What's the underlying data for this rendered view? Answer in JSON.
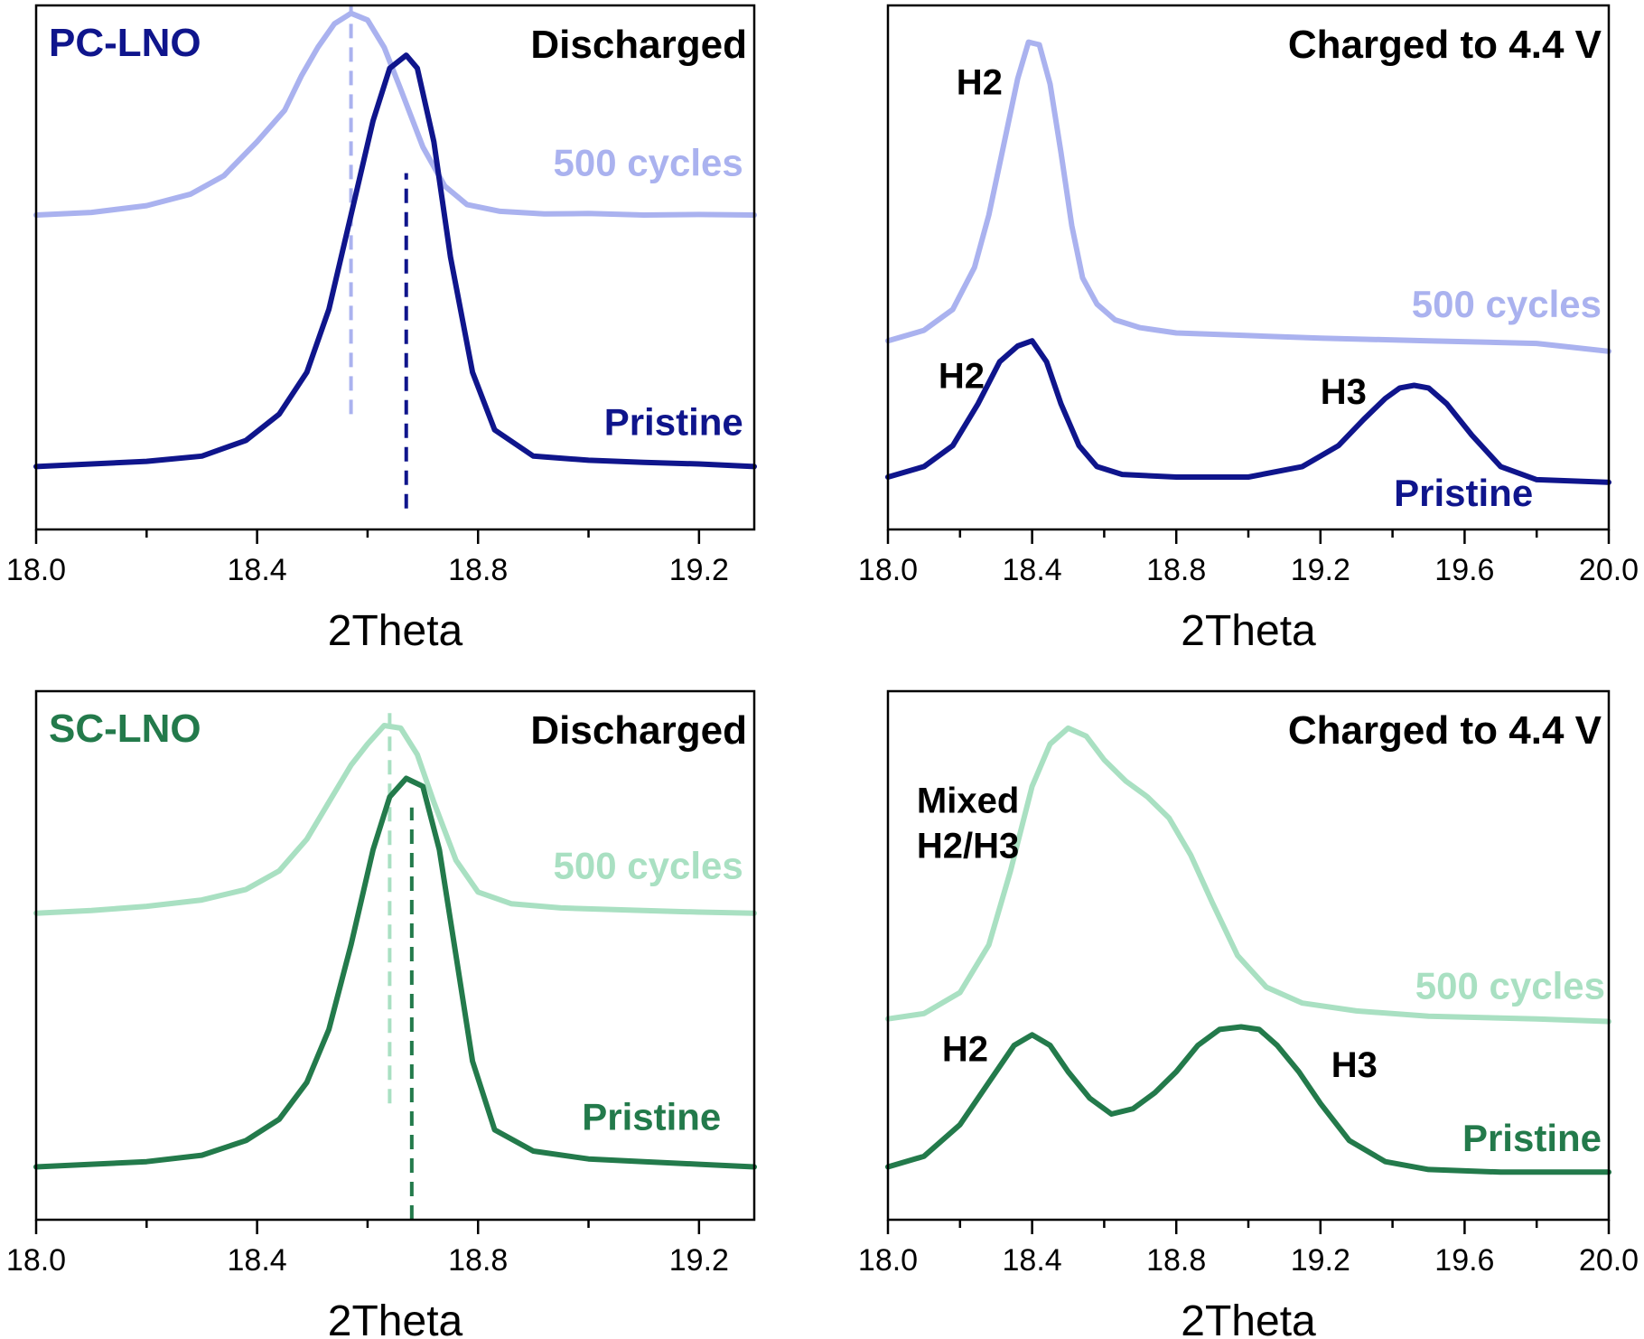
{
  "colors": {
    "pc_pristine": "#0f158c",
    "pc_cycled": "#aab2ef",
    "sc_pristine": "#237a4b",
    "sc_cycled": "#a9e0c2",
    "black": "#000000"
  },
  "chart_data": [
    {
      "id": "pc-discharged",
      "type": "line",
      "sample_label": "PC-LNO",
      "corner_title": "Discharged",
      "xlabel": "2Theta",
      "ylabel": "",
      "xlim": [
        18.0,
        19.3
      ],
      "ylim": [
        0,
        1
      ],
      "xticks": [
        18.0,
        18.4,
        18.8,
        19.2
      ],
      "xtick_labels": [
        "18.0",
        "18.4",
        "18.8",
        "19.2"
      ],
      "minor_xticks": [
        18.2,
        18.6,
        19.0
      ],
      "series": [
        {
          "name": "500 cycles",
          "color_key": "pc_cycled",
          "x": [
            18.0,
            18.1,
            18.2,
            18.28,
            18.34,
            18.4,
            18.45,
            18.48,
            18.51,
            18.54,
            18.57,
            18.6,
            18.63,
            18.66,
            18.7,
            18.74,
            18.78,
            18.84,
            18.92,
            19.0,
            19.1,
            19.2,
            19.3
          ],
          "y": [
            0.6,
            0.605,
            0.618,
            0.64,
            0.675,
            0.74,
            0.8,
            0.865,
            0.92,
            0.965,
            0.985,
            0.972,
            0.92,
            0.84,
            0.73,
            0.655,
            0.62,
            0.607,
            0.602,
            0.603,
            0.6,
            0.601,
            0.6
          ]
        },
        {
          "name": "Pristine",
          "color_key": "pc_pristine",
          "x": [
            18.0,
            18.1,
            18.2,
            18.3,
            18.38,
            18.44,
            18.49,
            18.53,
            18.57,
            18.61,
            18.64,
            18.67,
            18.69,
            18.72,
            18.75,
            18.79,
            18.83,
            18.9,
            19.0,
            19.1,
            19.2,
            19.3
          ],
          "y": [
            0.12,
            0.125,
            0.13,
            0.14,
            0.17,
            0.22,
            0.3,
            0.42,
            0.6,
            0.78,
            0.88,
            0.905,
            0.88,
            0.74,
            0.52,
            0.3,
            0.19,
            0.14,
            0.132,
            0.128,
            0.125,
            0.12
          ]
        }
      ],
      "reference_lines": [
        {
          "x": 18.57,
          "color_key": "pc_cycled",
          "y_from": 0.22,
          "y_to": 1.0
        },
        {
          "x": 18.67,
          "color_key": "pc_pristine",
          "y_from": 0.04,
          "y_to": 0.68
        }
      ],
      "series_labels": [
        {
          "text": "500 cycles",
          "color_key": "pc_cycled",
          "x": 19.28,
          "y": 0.675
        },
        {
          "text": "Pristine",
          "color_key": "pc_pristine",
          "x": 19.28,
          "y": 0.18
        }
      ],
      "annotations": []
    },
    {
      "id": "pc-charged",
      "type": "line",
      "sample_label": "",
      "corner_title": "Charged to 4.4 V",
      "xlabel": "2Theta",
      "ylabel": "",
      "xlim": [
        18.0,
        20.0
      ],
      "ylim": [
        0,
        1
      ],
      "xticks": [
        18.0,
        18.4,
        18.8,
        19.2,
        19.6,
        20.0
      ],
      "xtick_labels": [
        "18.0",
        "18.4",
        "18.8",
        "19.2",
        "19.6",
        "20.0"
      ],
      "minor_xticks": [
        18.2,
        18.6,
        19.0,
        19.4,
        19.8
      ],
      "series": [
        {
          "name": "500 cycles",
          "color_key": "pc_cycled",
          "x": [
            18.0,
            18.1,
            18.18,
            18.24,
            18.28,
            18.32,
            18.36,
            18.39,
            18.42,
            18.45,
            18.48,
            18.51,
            18.54,
            18.58,
            18.63,
            18.7,
            18.8,
            19.0,
            19.2,
            19.5,
            19.8,
            20.0
          ],
          "y": [
            0.36,
            0.38,
            0.42,
            0.5,
            0.6,
            0.73,
            0.86,
            0.93,
            0.925,
            0.85,
            0.72,
            0.58,
            0.48,
            0.43,
            0.4,
            0.385,
            0.375,
            0.37,
            0.365,
            0.36,
            0.355,
            0.34
          ]
        },
        {
          "name": "Pristine",
          "color_key": "pc_pristine",
          "x": [
            18.0,
            18.1,
            18.18,
            18.25,
            18.31,
            18.36,
            18.4,
            18.44,
            18.48,
            18.53,
            18.58,
            18.65,
            18.8,
            19.0,
            19.15,
            19.25,
            19.32,
            19.38,
            19.42,
            19.46,
            19.5,
            19.55,
            19.62,
            19.7,
            19.8,
            20.0
          ],
          "y": [
            0.1,
            0.12,
            0.16,
            0.24,
            0.32,
            0.35,
            0.36,
            0.32,
            0.24,
            0.16,
            0.12,
            0.105,
            0.1,
            0.1,
            0.12,
            0.16,
            0.21,
            0.25,
            0.27,
            0.275,
            0.27,
            0.24,
            0.18,
            0.12,
            0.095,
            0.09
          ]
        }
      ],
      "reference_lines": [],
      "series_labels": [
        {
          "text": "500 cycles",
          "color_key": "pc_cycled",
          "x": 19.98,
          "y": 0.405
        },
        {
          "text": "Pristine",
          "color_key": "pc_pristine",
          "x": 19.79,
          "y": 0.045
        }
      ],
      "annotations": [
        {
          "lines": [
            "H2"
          ],
          "x": 18.19,
          "y": 0.83
        },
        {
          "lines": [
            "H2"
          ],
          "x": 18.14,
          "y": 0.27
        },
        {
          "lines": [
            "H3"
          ],
          "x": 19.2,
          "y": 0.24
        }
      ]
    },
    {
      "id": "sc-discharged",
      "type": "line",
      "sample_label": "SC-LNO",
      "corner_title": "Discharged",
      "xlabel": "2Theta",
      "ylabel": "",
      "xlim": [
        18.0,
        19.3
      ],
      "ylim": [
        0,
        1
      ],
      "xticks": [
        18.0,
        18.4,
        18.8,
        19.2
      ],
      "xtick_labels": [
        "18.0",
        "18.4",
        "18.8",
        "19.2"
      ],
      "minor_xticks": [
        18.2,
        18.6,
        19.0
      ],
      "series": [
        {
          "name": "500 cycles",
          "color_key": "sc_cycled",
          "x": [
            18.0,
            18.1,
            18.2,
            18.3,
            18.38,
            18.44,
            18.49,
            18.53,
            18.57,
            18.6,
            18.63,
            18.66,
            18.69,
            18.72,
            18.76,
            18.8,
            18.86,
            18.95,
            19.1,
            19.2,
            19.3
          ],
          "y": [
            0.58,
            0.585,
            0.593,
            0.605,
            0.625,
            0.66,
            0.72,
            0.79,
            0.86,
            0.9,
            0.935,
            0.93,
            0.88,
            0.79,
            0.68,
            0.62,
            0.598,
            0.59,
            0.585,
            0.582,
            0.58
          ]
        },
        {
          "name": "Pristine",
          "color_key": "sc_pristine",
          "x": [
            18.0,
            18.1,
            18.2,
            18.3,
            18.38,
            18.44,
            18.49,
            18.53,
            18.57,
            18.61,
            18.64,
            18.67,
            18.7,
            18.73,
            18.76,
            18.79,
            18.83,
            18.9,
            19.0,
            19.1,
            19.2,
            19.3
          ],
          "y": [
            0.1,
            0.105,
            0.11,
            0.122,
            0.15,
            0.19,
            0.26,
            0.36,
            0.52,
            0.7,
            0.8,
            0.835,
            0.82,
            0.7,
            0.5,
            0.3,
            0.17,
            0.13,
            0.115,
            0.11,
            0.105,
            0.1
          ]
        }
      ],
      "reference_lines": [
        {
          "x": 18.64,
          "color_key": "sc_cycled",
          "y_from": 0.22,
          "y_to": 0.96
        },
        {
          "x": 18.68,
          "color_key": "sc_pristine",
          "y_from": 0.0,
          "y_to": 0.78
        }
      ],
      "series_labels": [
        {
          "text": "500 cycles",
          "color_key": "sc_cycled",
          "x": 19.28,
          "y": 0.645
        },
        {
          "text": "Pristine",
          "color_key": "sc_pristine",
          "x": 19.24,
          "y": 0.17
        }
      ],
      "annotations": []
    },
    {
      "id": "sc-charged",
      "type": "line",
      "sample_label": "",
      "corner_title": "Charged to 4.4 V",
      "xlabel": "2Theta",
      "ylabel": "",
      "xlim": [
        18.0,
        20.0
      ],
      "ylim": [
        0,
        1
      ],
      "xticks": [
        18.0,
        18.4,
        18.8,
        19.2,
        19.6,
        20.0
      ],
      "xtick_labels": [
        "18.0",
        "18.4",
        "18.8",
        "19.2",
        "19.6",
        "20.0"
      ],
      "minor_xticks": [
        18.2,
        18.6,
        19.0,
        19.4,
        19.8
      ],
      "series": [
        {
          "name": "500 cycles",
          "color_key": "sc_cycled",
          "x": [
            18.0,
            18.1,
            18.2,
            18.28,
            18.34,
            18.4,
            18.45,
            18.5,
            18.55,
            18.6,
            18.66,
            18.72,
            18.78,
            18.84,
            18.9,
            18.97,
            19.05,
            19.15,
            19.3,
            19.5,
            19.8,
            20.0
          ],
          "y": [
            0.38,
            0.39,
            0.43,
            0.52,
            0.66,
            0.82,
            0.9,
            0.93,
            0.915,
            0.87,
            0.83,
            0.8,
            0.76,
            0.69,
            0.6,
            0.5,
            0.44,
            0.41,
            0.395,
            0.385,
            0.38,
            0.375
          ]
        },
        {
          "name": "Pristine",
          "color_key": "sc_pristine",
          "x": [
            18.0,
            18.1,
            18.2,
            18.28,
            18.35,
            18.4,
            18.45,
            18.5,
            18.56,
            18.62,
            18.68,
            18.74,
            18.8,
            18.86,
            18.92,
            18.98,
            19.03,
            19.08,
            19.14,
            19.2,
            19.28,
            19.38,
            19.5,
            19.7,
            20.0
          ],
          "y": [
            0.1,
            0.12,
            0.18,
            0.26,
            0.33,
            0.35,
            0.33,
            0.28,
            0.23,
            0.2,
            0.21,
            0.24,
            0.28,
            0.33,
            0.36,
            0.365,
            0.36,
            0.33,
            0.28,
            0.22,
            0.15,
            0.11,
            0.095,
            0.09,
            0.09
          ]
        }
      ],
      "reference_lines": [],
      "series_labels": [
        {
          "text": "500 cycles",
          "color_key": "sc_cycled",
          "x": 19.99,
          "y": 0.418
        },
        {
          "text": "Pristine",
          "color_key": "sc_pristine",
          "x": 19.98,
          "y": 0.13
        }
      ],
      "annotations": [
        {
          "lines": [
            "Mixed",
            "H2/H3"
          ],
          "x": 18.08,
          "y": 0.77
        },
        {
          "lines": [
            "H2"
          ],
          "x": 18.15,
          "y": 0.3
        },
        {
          "lines": [
            "H3"
          ],
          "x": 19.23,
          "y": 0.27
        }
      ]
    }
  ]
}
